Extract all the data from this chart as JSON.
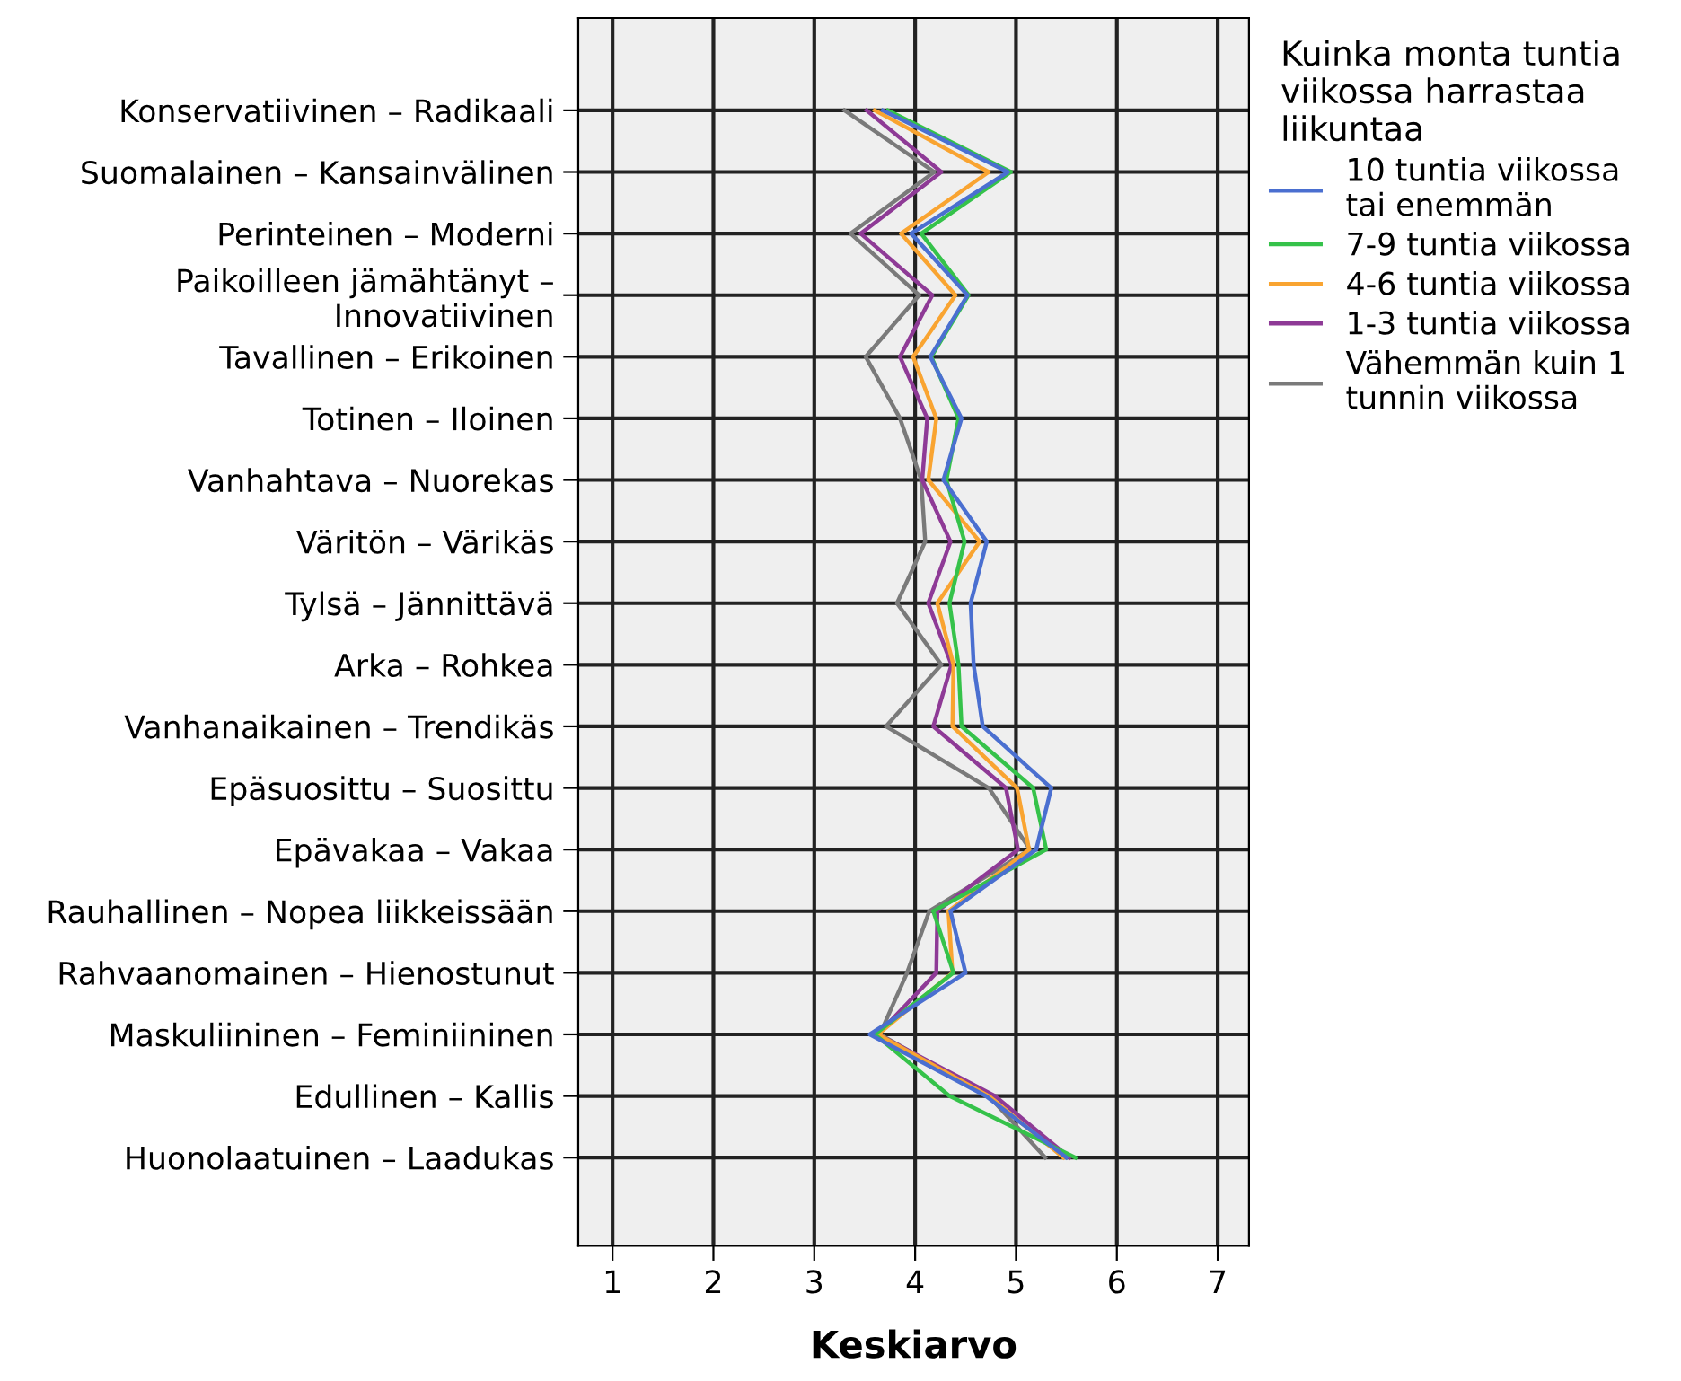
{
  "chart_data": {
    "type": "line",
    "orientation": "horizontal",
    "xlabel": "Keskiarvo",
    "legend_title": "Kuinka monta tuntia\nviikossa harrastaa\nliikuntaa",
    "legend": "right",
    "grid": true,
    "categories": [
      "Konservatiivinen – Radikaali",
      "Suomalainen – Kansainvälinen",
      "Perinteinen – Moderni",
      "Paikoilleen jämähtänyt –\nInnovatiivinen",
      "Tavallinen – Erikoinen",
      "Totinen – Iloinen",
      "Vanhahtava – Nuorekas",
      "Väritön – Värikäs",
      "Tylsä – Jännittävä",
      "Arka – Rohkea",
      "Vanhanaikainen – Trendikäs",
      "Epäsuosittu – Suosittu",
      "Epävakaa – Vakaa",
      "Rauhallinen – Nopea liikkeissään",
      "Rahvaanomainen – Hienostunut",
      "Maskuliininen – Feminiininen",
      "Edullinen – Kallis",
      "Huonolaatuinen – Laadukas"
    ],
    "xlim": [
      0.66,
      7.31
    ],
    "xticks": [
      1,
      2,
      3,
      4,
      5,
      6,
      7
    ],
    "series": [
      {
        "name": "10 tuntia viikossa\ntai enemmän",
        "color": "#4a6fd0",
        "values": [
          3.68,
          4.92,
          3.96,
          4.52,
          4.15,
          4.46,
          4.28,
          4.71,
          4.55,
          4.58,
          4.67,
          5.35,
          5.2,
          4.35,
          4.5,
          3.55,
          4.7,
          5.5
        ]
      },
      {
        "name": "7-9 tuntia viikossa",
        "color": "#35c24a",
        "values": [
          3.73,
          4.95,
          4.06,
          4.53,
          4.16,
          4.43,
          4.31,
          4.49,
          4.34,
          4.43,
          4.46,
          5.17,
          5.3,
          4.18,
          4.38,
          3.6,
          4.34,
          5.59
        ]
      },
      {
        "name": "4-6 tuntia viikossa",
        "color": "#f9a431",
        "values": [
          3.6,
          4.73,
          3.86,
          4.4,
          3.98,
          4.21,
          4.13,
          4.64,
          4.22,
          4.38,
          4.37,
          5.01,
          5.13,
          4.33,
          4.37,
          3.63,
          4.73,
          5.47
        ]
      },
      {
        "name": "1-3 tuntia viikossa",
        "color": "#8e3a96",
        "values": [
          3.52,
          4.26,
          3.46,
          4.17,
          3.85,
          4.12,
          4.07,
          4.35,
          4.13,
          4.36,
          4.18,
          4.9,
          5.02,
          4.22,
          4.21,
          3.63,
          4.79,
          5.53
        ]
      },
      {
        "name": "Vähemmän kuin 1\ntunnin viikossa",
        "color": "#7a7a7a",
        "values": [
          3.3,
          4.19,
          3.36,
          4.04,
          3.51,
          3.85,
          4.06,
          4.1,
          3.82,
          4.26,
          3.71,
          4.73,
          5.14,
          4.14,
          3.92,
          3.65,
          4.73,
          5.29
        ]
      }
    ]
  }
}
